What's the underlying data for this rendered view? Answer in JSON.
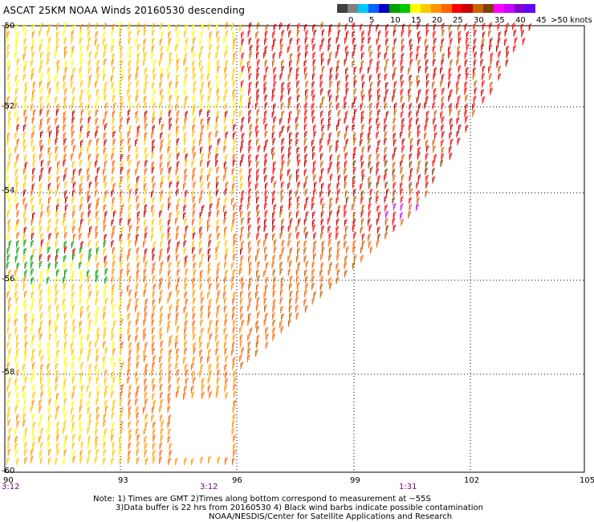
{
  "title": "ASCAT 25KM NOAA Winds 20160530 descending",
  "scale": {
    "labels": [
      "0",
      "5",
      "10",
      "15",
      "20",
      "25",
      "30",
      "35",
      "40",
      "45",
      ">50 knots"
    ],
    "colors": [
      "#404040",
      "#808080",
      "#00c8ff",
      "#0064ff",
      "#0000c8",
      "#00a000",
      "#00c800",
      "#ffff00",
      "#ffc800",
      "#ff9600",
      "#ff6400",
      "#ff0000",
      "#c80000",
      "#c86400",
      "#804000",
      "#ff00ff",
      "#c800ff",
      "#8000c8",
      "#6400ff"
    ]
  },
  "axes": {
    "lat_labels": [
      "-50",
      "-52",
      "-54",
      "-56",
      "-58",
      "-60"
    ],
    "lon_labels": [
      "90",
      "93",
      "96",
      "99",
      "102",
      "105"
    ],
    "lat_values": [
      -50,
      -52,
      -54,
      -56,
      -58,
      -60
    ],
    "lon_values": [
      90,
      93,
      96,
      99,
      102,
      105
    ]
  },
  "times": [
    "3:12",
    "3:12",
    "1:31"
  ],
  "notes": {
    "line1": "Note: 1) Times are GMT 2)Times along bottom correspond to measurement at ~55S",
    "line2": "3)Data buffer is 22 hrs from 20160530 4) Black wind barbs indicate possible contamination",
    "line3": "NOAA/NESDIS/Center for Satellite Applications and Research"
  }
}
